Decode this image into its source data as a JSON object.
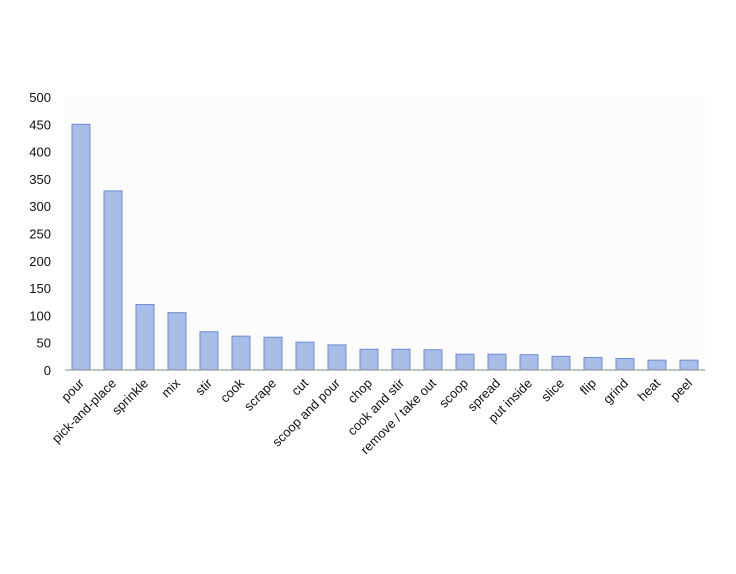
{
  "chart_data": {
    "type": "bar",
    "categories": [
      "pour",
      "pick-and-place",
      "sprinkle",
      "mix",
      "stir",
      "cook",
      "scrape",
      "cut",
      "scoop and pour",
      "chop",
      "cook and stir",
      "remove / take out",
      "scoop",
      "spread",
      "put inside",
      "slice",
      "flip",
      "grind",
      "heat",
      "peel"
    ],
    "values": [
      450,
      328,
      120,
      105,
      70,
      62,
      60,
      51,
      46,
      38,
      38,
      37,
      29,
      29,
      28,
      25,
      23,
      21,
      18,
      18
    ],
    "color": "#a9bde9",
    "ylim": [
      0,
      500
    ],
    "yticks": [
      0,
      50,
      100,
      150,
      200,
      250,
      300,
      350,
      400,
      450,
      500
    ]
  }
}
